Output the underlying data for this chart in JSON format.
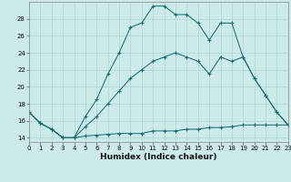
{
  "xlabel": "Humidex (Indice chaleur)",
  "bg_color": "#cdeaea",
  "grid_color": "#aed4d4",
  "line_color": "#1a7070",
  "line1_x": [
    0,
    1,
    2,
    3,
    4,
    5,
    6,
    7,
    8,
    9,
    10,
    11,
    12,
    13,
    14,
    15,
    16,
    17,
    18,
    19,
    20,
    21,
    22,
    23
  ],
  "line1_y": [
    17.0,
    15.7,
    15.0,
    14.0,
    14.0,
    14.2,
    14.3,
    14.4,
    14.5,
    14.5,
    14.5,
    14.8,
    14.8,
    14.8,
    15.0,
    15.0,
    15.2,
    15.2,
    15.3,
    15.5,
    15.5,
    15.5,
    15.5,
    15.5
  ],
  "line2_x": [
    0,
    1,
    2,
    3,
    4,
    5,
    6,
    7,
    8,
    9,
    10,
    11,
    12,
    13,
    14,
    15,
    16,
    17,
    18,
    19,
    20,
    21,
    22,
    23
  ],
  "line2_y": [
    17.0,
    15.7,
    15.0,
    14.0,
    14.0,
    16.5,
    18.5,
    21.5,
    24.0,
    27.0,
    27.5,
    29.5,
    29.5,
    28.5,
    28.5,
    27.5,
    25.5,
    27.5,
    27.5,
    23.5,
    21.0,
    19.0,
    17.0,
    15.5
  ],
  "line3_x": [
    0,
    1,
    2,
    3,
    4,
    5,
    6,
    7,
    8,
    9,
    10,
    11,
    12,
    13,
    14,
    15,
    16,
    17,
    18,
    19,
    20,
    21,
    22,
    23
  ],
  "line3_y": [
    17.0,
    15.7,
    15.0,
    14.0,
    14.0,
    15.3,
    16.5,
    18.0,
    19.5,
    21.0,
    22.0,
    23.0,
    23.5,
    24.0,
    23.5,
    23.0,
    21.5,
    23.5,
    23.0,
    23.5,
    21.0,
    19.0,
    17.0,
    15.5
  ],
  "xlim": [
    0,
    23
  ],
  "ylim": [
    13.5,
    30.0
  ],
  "xticks": [
    0,
    1,
    2,
    3,
    4,
    5,
    6,
    7,
    8,
    9,
    10,
    11,
    12,
    13,
    14,
    15,
    16,
    17,
    18,
    19,
    20,
    21,
    22,
    23
  ],
  "yticks": [
    14,
    16,
    18,
    20,
    22,
    24,
    26,
    28
  ],
  "xlabel_fontsize": 6.5,
  "tick_fontsize": 5.0
}
